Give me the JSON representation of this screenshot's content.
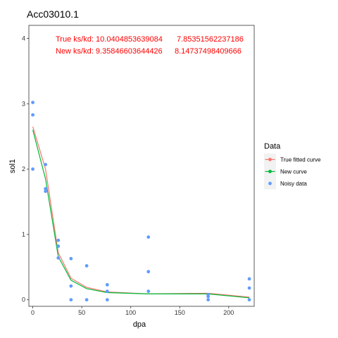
{
  "chart_data": {
    "type": "line",
    "title": "Acc03010.1",
    "xlabel": "dpa",
    "ylabel": "sol1",
    "xlim": [
      -4,
      226
    ],
    "ylim": [
      -0.1,
      4.2
    ],
    "xticks": [
      0,
      50,
      100,
      150,
      200
    ],
    "yticks": [
      0,
      1,
      2,
      3,
      4
    ],
    "grid": false,
    "annotations": {
      "line1_label": "True ks/kd: 10.0404853639084",
      "line1_value": "7.85351562237186",
      "line2_label": "New ks/kd: 9.35846603644426",
      "line2_value": "8.14737498409666"
    },
    "legend": {
      "title": "Data",
      "position": "right",
      "entries": [
        "True fitted curve",
        "New curve",
        "Noisy data"
      ]
    },
    "colors": {
      "true_fitted": "#f8766d",
      "new_curve": "#00ba38",
      "noisy": "#619cff",
      "annotation": "#ff0000"
    },
    "series": [
      {
        "name": "True fitted curve",
        "x": [
          0,
          13,
          26,
          39,
          55,
          76,
          118,
          179,
          221
        ],
        "y": [
          2.65,
          2.0,
          0.72,
          0.33,
          0.19,
          0.12,
          0.09,
          0.1,
          0.04
        ]
      },
      {
        "name": "New curve",
        "x": [
          0,
          13,
          26,
          39,
          55,
          76,
          118,
          179,
          221
        ],
        "y": [
          2.6,
          1.85,
          0.66,
          0.3,
          0.17,
          0.11,
          0.09,
          0.09,
          0.03
        ]
      }
    ],
    "points": {
      "name": "Noisy data",
      "x": [
        0,
        0,
        0,
        13,
        13,
        13,
        26,
        26,
        26,
        39,
        39,
        39,
        55,
        55,
        76,
        76,
        76,
        118,
        118,
        118,
        179,
        179,
        179,
        221,
        221,
        221
      ],
      "y": [
        3.02,
        2.83,
        2.0,
        2.07,
        1.7,
        1.66,
        0.91,
        0.82,
        0.64,
        0.63,
        0.21,
        0.0,
        0.52,
        0.0,
        0.23,
        0.13,
        0.0,
        0.96,
        0.43,
        0.13,
        0.08,
        0.05,
        0.0,
        0.32,
        0.18,
        0.0
      ]
    }
  }
}
